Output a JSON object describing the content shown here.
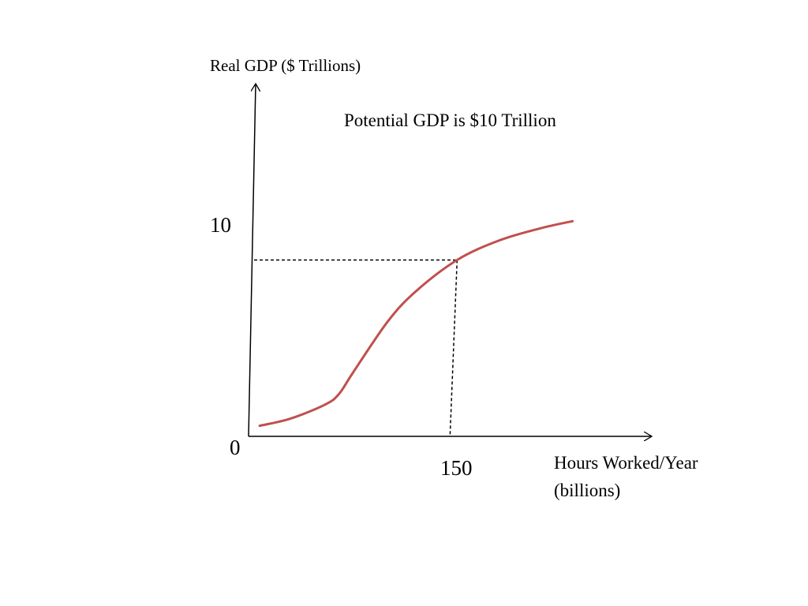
{
  "chart_data": {
    "type": "line",
    "ylabel": "Real GDP ($ Trillions)",
    "xlabel_lines": [
      "Hours Worked/Year",
      "(billions)"
    ],
    "annotation": "Potential GDP is $10 Trillion",
    "origin_label": "0",
    "x_tick_label": "150",
    "y_tick_label": "10",
    "reference_point": {
      "x": 150,
      "y": 10
    },
    "xlim": [
      0,
      290
    ],
    "ylim": [
      0,
      20
    ],
    "grid": false,
    "series": [
      {
        "color": "#c0504d",
        "x": [
          8,
          30,
          55,
          65,
          75,
          100,
          120,
          150,
          180,
          210,
          233
        ],
        "y": [
          0.6,
          1.0,
          1.8,
          2.4,
          3.6,
          6.5,
          8.2,
          10.0,
          11.1,
          11.8,
          12.2
        ]
      }
    ]
  }
}
